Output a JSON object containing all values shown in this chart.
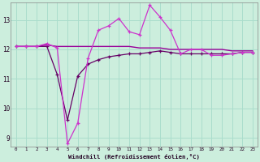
{
  "xlabel": "Windchill (Refroidissement éolien,°C)",
  "background_color": "#cceedd",
  "grid_color": "#aaddcc",
  "xlim": [
    -0.5,
    23.5
  ],
  "ylim": [
    8.7,
    13.6
  ],
  "yticks": [
    9,
    10,
    11,
    12,
    13
  ],
  "xticks": [
    0,
    1,
    2,
    3,
    4,
    5,
    6,
    7,
    8,
    9,
    10,
    11,
    12,
    13,
    14,
    15,
    16,
    17,
    18,
    19,
    20,
    21,
    22,
    23
  ],
  "s1_color": "#990099",
  "s2_color": "#cc33cc",
  "s3_color": "#660066",
  "s1_x": [
    0,
    1,
    2,
    3,
    4,
    5,
    6,
    7,
    8,
    9,
    10,
    11,
    12,
    13,
    14,
    15,
    16,
    17,
    18,
    19,
    20,
    21,
    22,
    23
  ],
  "s1_y": [
    12.1,
    12.1,
    12.1,
    12.15,
    12.1,
    12.1,
    12.1,
    12.1,
    12.1,
    12.1,
    12.1,
    12.1,
    12.05,
    12.05,
    12.05,
    12.0,
    12.0,
    12.0,
    12.0,
    12.0,
    12.0,
    11.95,
    11.95,
    11.95
  ],
  "s2_x": [
    0,
    1,
    2,
    3,
    4,
    5,
    6,
    7,
    8,
    9,
    10,
    11,
    12,
    13,
    14,
    15,
    16,
    17,
    18,
    19,
    20,
    21,
    22,
    23
  ],
  "s2_y": [
    12.1,
    12.1,
    12.1,
    12.2,
    12.05,
    8.8,
    9.5,
    11.7,
    12.65,
    12.8,
    13.05,
    12.6,
    12.5,
    13.5,
    13.1,
    12.65,
    11.85,
    12.0,
    12.0,
    11.8,
    11.8,
    11.85,
    11.9,
    11.9
  ],
  "s3_x": [
    0,
    1,
    2,
    3,
    4,
    5,
    6,
    7,
    8,
    9,
    10,
    11,
    12,
    13,
    14,
    15,
    16,
    17,
    18,
    19,
    20,
    21,
    22,
    23
  ],
  "s3_y": [
    12.1,
    12.1,
    12.1,
    12.1,
    11.15,
    9.6,
    11.1,
    11.5,
    11.65,
    11.75,
    11.8,
    11.85,
    11.85,
    11.9,
    11.95,
    11.9,
    11.85,
    11.85,
    11.85,
    11.85,
    11.85,
    11.85,
    11.9,
    11.9
  ]
}
